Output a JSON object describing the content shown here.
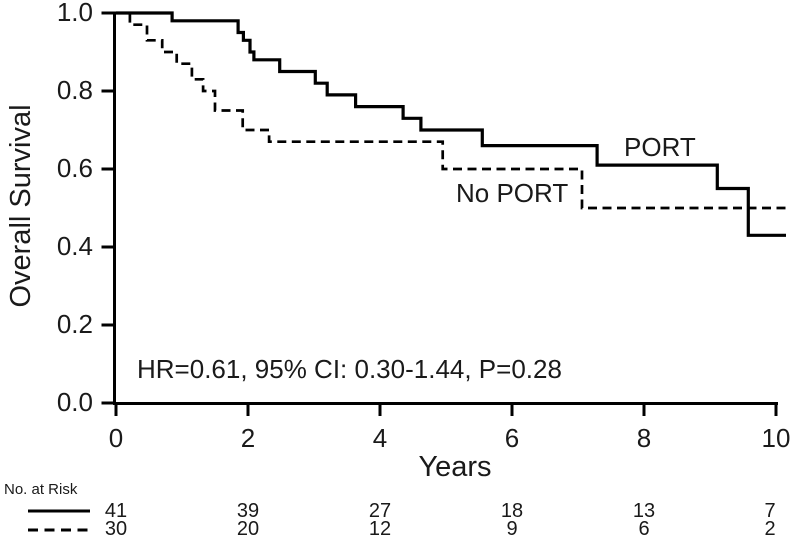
{
  "figure": {
    "background": "#ffffff",
    "line_color": "#000000",
    "text_color": "#1a1a1a"
  },
  "chart_data": {
    "type": "line",
    "subtype": "kaplan-meier-step",
    "title": "",
    "xlabel": "Years",
    "ylabel": "Overall Survival",
    "xlim": [
      0,
      10
    ],
    "ylim": [
      0.0,
      1.0
    ],
    "x_ticks": [
      0,
      2,
      4,
      6,
      8,
      10
    ],
    "y_ticks": [
      "0.0",
      "0.2",
      "0.4",
      "0.6",
      "0.8",
      "1.0"
    ],
    "grid": false,
    "legend_position": "inline-curve-labels",
    "annotation": "HR=0.61, 95% CI: 0.30-1.44, P=0.28",
    "series": [
      {
        "name": "PORT",
        "label": "PORT",
        "line_style": "solid",
        "steps": [
          [
            0,
            1.0
          ],
          [
            0.85,
            0.98
          ],
          [
            1.85,
            0.95
          ],
          [
            1.93,
            0.93
          ],
          [
            2.03,
            0.9
          ],
          [
            2.09,
            0.88
          ],
          [
            2.48,
            0.85
          ],
          [
            3.02,
            0.82
          ],
          [
            3.2,
            0.79
          ],
          [
            3.63,
            0.76
          ],
          [
            4.35,
            0.73
          ],
          [
            4.62,
            0.7
          ],
          [
            5.55,
            0.66
          ],
          [
            7.29,
            0.61
          ],
          [
            9.11,
            0.55
          ],
          [
            9.58,
            0.43
          ],
          [
            10,
            0.43
          ]
        ]
      },
      {
        "name": "No PORT",
        "label": "No PORT",
        "line_style": "dashed",
        "steps": [
          [
            0,
            1.0
          ],
          [
            0.21,
            0.97
          ],
          [
            0.47,
            0.93
          ],
          [
            0.7,
            0.9
          ],
          [
            0.92,
            0.87
          ],
          [
            1.15,
            0.83
          ],
          [
            1.32,
            0.8
          ],
          [
            1.5,
            0.75
          ],
          [
            1.92,
            0.7
          ],
          [
            2.32,
            0.67
          ],
          [
            4.95,
            0.6
          ],
          [
            7.06,
            0.5
          ],
          [
            10,
            0.5
          ]
        ]
      }
    ]
  },
  "risk_table": {
    "title": "No. at Risk",
    "years": [
      0,
      2,
      4,
      6,
      8,
      10
    ],
    "rows": [
      {
        "name": "PORT",
        "swatch": "solid",
        "counts": [
          41,
          39,
          27,
          18,
          13,
          7
        ]
      },
      {
        "name": "No PORT",
        "swatch": "dashed",
        "counts": [
          30,
          20,
          12,
          9,
          6,
          2
        ]
      }
    ]
  }
}
